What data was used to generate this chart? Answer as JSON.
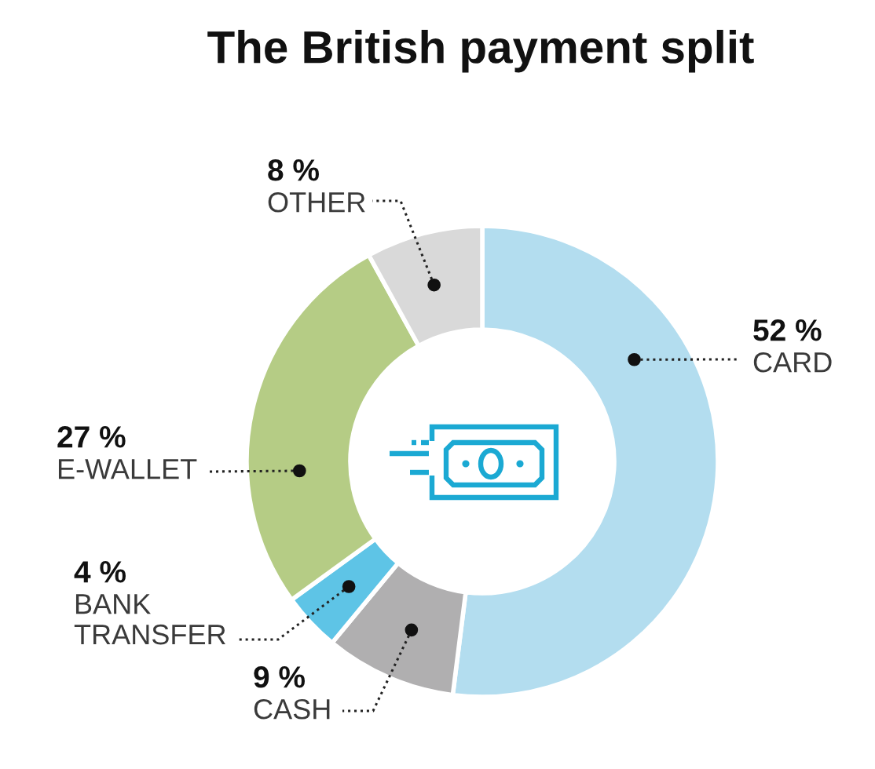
{
  "chart_data": {
    "type": "donut",
    "title": "The British payment split",
    "categories": [
      "CARD",
      "CASH",
      "BANK\nTRANSFER",
      "E-WALLET",
      "OTHER"
    ],
    "values": [
      52,
      9,
      4,
      27,
      8
    ],
    "colors": [
      "#b3ddef",
      "#b0afb0",
      "#5ec4e6",
      "#b5cc85",
      "#d9d9d9"
    ],
    "value_labels": [
      "52 %",
      "9 %",
      "4 %",
      "27 %",
      "8 %"
    ]
  }
}
